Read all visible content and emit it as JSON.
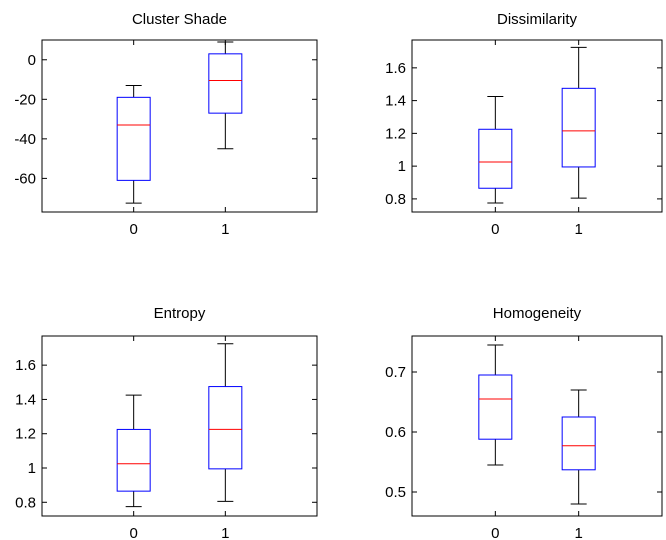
{
  "colors": {
    "box": "#0000ff",
    "median": "#ff0000",
    "whisker": "#000000",
    "frame": "#000000"
  },
  "chart_data": [
    {
      "type": "box",
      "title": "Cluster Shade",
      "categories": [
        "0",
        "1"
      ],
      "yticks": [
        "0",
        "-20",
        "-40",
        "-60"
      ],
      "ytick_values": [
        0,
        -20,
        -40,
        -60
      ],
      "ylim": [
        -77,
        10
      ],
      "series": [
        {
          "category": "0",
          "min": -72.5,
          "q1": -61,
          "median": -33,
          "q3": -19,
          "max": -13
        },
        {
          "category": "1",
          "min": -45,
          "q1": -27,
          "median": -10.5,
          "q3": 3,
          "max": 9
        }
      ]
    },
    {
      "type": "box",
      "title": "Dissimilarity",
      "categories": [
        "0",
        "1"
      ],
      "yticks": [
        "1.6",
        "1.4",
        "1.2",
        "1",
        "0.8"
      ],
      "ytick_values": [
        1.6,
        1.4,
        1.2,
        1.0,
        0.8
      ],
      "ylim": [
        0.72,
        1.77
      ],
      "series": [
        {
          "category": "0",
          "min": 0.775,
          "q1": 0.865,
          "median": 1.025,
          "q3": 1.225,
          "max": 1.425
        },
        {
          "category": "1",
          "min": 0.805,
          "q1": 0.995,
          "median": 1.215,
          "q3": 1.475,
          "max": 1.725
        }
      ]
    },
    {
      "type": "box",
      "title": "Entropy",
      "categories": [
        "0",
        "1"
      ],
      "yticks": [
        "1.6",
        "1.4",
        "1.2",
        "1",
        "0.8"
      ],
      "ytick_values": [
        1.6,
        1.4,
        1.2,
        1.0,
        0.8
      ],
      "ylim": [
        0.72,
        1.77
      ],
      "series": [
        {
          "category": "0",
          "min": 0.775,
          "q1": 0.865,
          "median": 1.025,
          "q3": 1.225,
          "max": 1.425
        },
        {
          "category": "1",
          "min": 0.805,
          "q1": 0.995,
          "median": 1.225,
          "q3": 1.475,
          "max": 1.725
        }
      ]
    },
    {
      "type": "box",
      "title": "Homogeneity",
      "categories": [
        "0",
        "1"
      ],
      "yticks": [
        "0.7",
        "0.6",
        "0.5"
      ],
      "ytick_values": [
        0.7,
        0.6,
        0.5
      ],
      "ylim": [
        0.46,
        0.76
      ],
      "series": [
        {
          "category": "0",
          "min": 0.545,
          "q1": 0.588,
          "median": 0.655,
          "q3": 0.695,
          "max": 0.745
        },
        {
          "category": "1",
          "min": 0.48,
          "q1": 0.537,
          "median": 0.577,
          "q3": 0.625,
          "max": 0.67
        }
      ]
    }
  ]
}
